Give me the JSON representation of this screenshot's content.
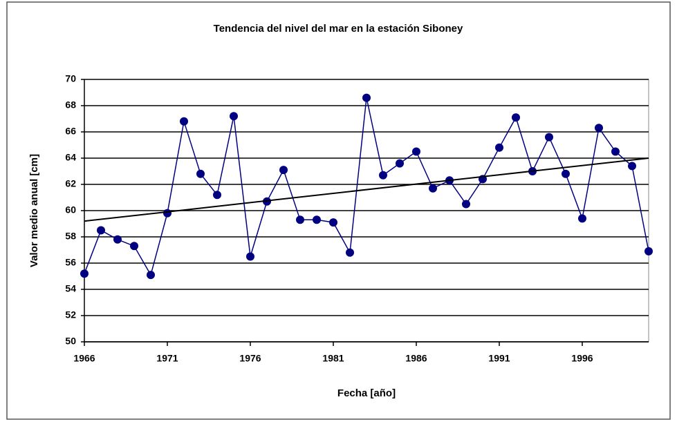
{
  "chart_data": {
    "type": "line",
    "title": "Tendencia del nivel del mar en la estación Siboney",
    "x_label": "Fecha [año]",
    "y_label": "Valor medio anual  [cm]",
    "x": [
      1966,
      1967,
      1968,
      1969,
      1970,
      1971,
      1972,
      1973,
      1974,
      1975,
      1976,
      1977,
      1978,
      1979,
      1980,
      1981,
      1982,
      1983,
      1984,
      1985,
      1986,
      1987,
      1988,
      1989,
      1990,
      1991,
      1992,
      1993,
      1994,
      1995,
      1996,
      1997,
      1998,
      1999,
      2000
    ],
    "series": [
      {
        "color": "#000080",
        "values": [
          55.2,
          58.5,
          57.8,
          57.3,
          55.1,
          59.8,
          66.8,
          62.8,
          61.2,
          67.2,
          56.5,
          60.7,
          63.1,
          59.3,
          59.3,
          59.1,
          56.8,
          68.6,
          62.7,
          63.6,
          64.5,
          61.7,
          62.3,
          60.5,
          62.4,
          64.8,
          67.1,
          63.0,
          65.6,
          62.8,
          59.4,
          66.3,
          64.5,
          63.4,
          56.9
        ]
      }
    ],
    "trendline": {
      "x": [
        1966,
        2000
      ],
      "values": [
        59.2,
        64.0
      ],
      "color": "#000000"
    },
    "xlim": [
      1966,
      2000
    ],
    "xticks": [
      1966,
      1971,
      1976,
      1981,
      1986,
      1991,
      1996
    ],
    "ylim": [
      50,
      70
    ],
    "yticks": [
      50,
      52,
      54,
      56,
      58,
      60,
      62,
      64,
      66,
      68,
      70
    ],
    "grid": true
  }
}
